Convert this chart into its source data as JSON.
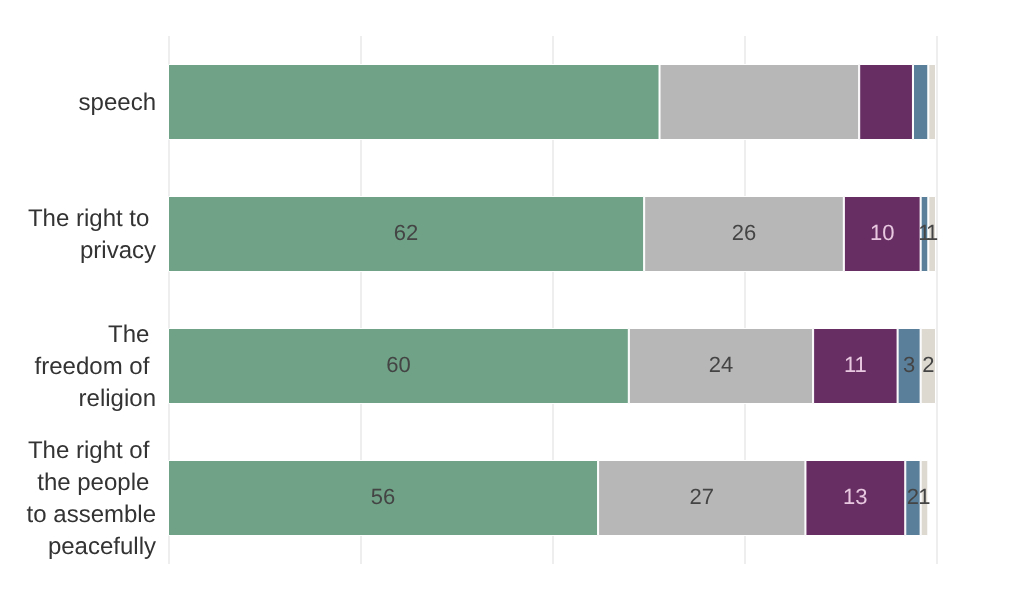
{
  "chart_data": {
    "type": "bar",
    "orientation": "horizontal",
    "stacked": true,
    "categories": [
      "speech",
      "The right to privacy",
      "The freedom of religion",
      "The right of the people to assemble peacefully"
    ],
    "series": [
      {
        "color": "#6fa287",
        "values": [
          64,
          62,
          60,
          56
        ],
        "value_labels": [
          null,
          "62",
          "60",
          "56"
        ]
      },
      {
        "color": "#b7b7b7",
        "values": [
          26,
          26,
          24,
          27
        ],
        "value_labels": [
          null,
          "26",
          "24",
          "27"
        ]
      },
      {
        "color": "#662e63",
        "values": [
          7,
          10,
          11,
          13
        ],
        "value_labels": [
          null,
          "10",
          "11",
          "13"
        ]
      },
      {
        "color": "#5a7f9a",
        "values": [
          2,
          1,
          3,
          2
        ],
        "value_labels": [
          null,
          "1",
          "3",
          "2"
        ]
      },
      {
        "color": "#ddd8d0",
        "values": [
          1,
          1,
          2,
          1
        ],
        "value_labels": [
          null,
          "1",
          "2",
          "1"
        ]
      }
    ],
    "xlim": [
      0,
      100
    ],
    "xticks": [
      {
        "value": 0,
        "label": null
      },
      {
        "value": 25,
        "label": null
      },
      {
        "value": 50,
        "label": null
      },
      {
        "value": 75,
        "label": null
      },
      {
        "value": 100,
        "label": null
      }
    ],
    "grid": "x",
    "tick_labels": "y"
  }
}
